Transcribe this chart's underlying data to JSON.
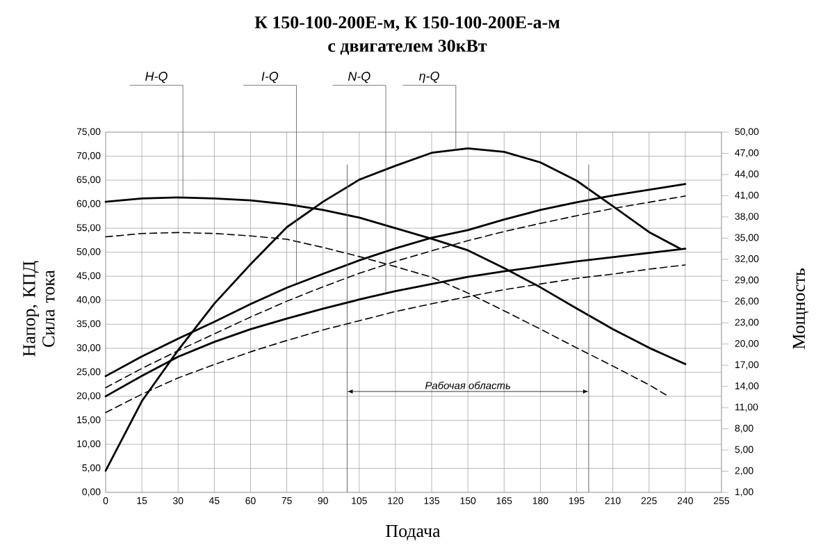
{
  "chart_data": {
    "type": "line",
    "title": "К 150-100-200Е-м, К 150-100-200Е-а-м",
    "subtitle": "с двигателем 30кВт",
    "xlabel": "Подача",
    "ylabel": "Напор, КПД Сила тока",
    "y2label": "Мощность",
    "x": [
      0,
      15,
      30,
      45,
      60,
      75,
      90,
      105,
      120,
      135,
      150,
      165,
      180,
      195,
      210,
      225,
      240
    ],
    "xlim": [
      0,
      255
    ],
    "xticks": [
      0,
      15,
      30,
      45,
      60,
      75,
      90,
      105,
      120,
      135,
      150,
      165,
      180,
      195,
      210,
      225,
      240,
      255
    ],
    "ylim": [
      0,
      75
    ],
    "yticks": [
      {
        "value": 0,
        "label": "0,00"
      },
      {
        "value": 5,
        "label": "5,00"
      },
      {
        "value": 10,
        "label": "10,00"
      },
      {
        "value": 15,
        "label": "15,00"
      },
      {
        "value": 20,
        "label": "20,00"
      },
      {
        "value": 25,
        "label": "25,00"
      },
      {
        "value": 30,
        "label": "30,00"
      },
      {
        "value": 35,
        "label": "35,00"
      },
      {
        "value": 40,
        "label": "40,00"
      },
      {
        "value": 45,
        "label": "45,00"
      },
      {
        "value": 50,
        "label": "50,00"
      },
      {
        "value": 55,
        "label": "55,00"
      },
      {
        "value": 60,
        "label": "60,00"
      },
      {
        "value": 65,
        "label": "65,00"
      },
      {
        "value": 70,
        "label": "70,00"
      },
      {
        "value": 75,
        "label": "75,00"
      }
    ],
    "y2lim": [
      -1,
      50
    ],
    "y2ticks": [
      {
        "value": -1,
        "label": "1,00"
      },
      {
        "value": 2,
        "label": "2,00"
      },
      {
        "value": 5,
        "label": "5,00"
      },
      {
        "value": 8,
        "label": "8,00"
      },
      {
        "value": 11,
        "label": "11,00"
      },
      {
        "value": 14,
        "label": "14,00"
      },
      {
        "value": 17,
        "label": "17,00"
      },
      {
        "value": 20,
        "label": "20,00"
      },
      {
        "value": 23,
        "label": "23,00"
      },
      {
        "value": 26,
        "label": "26,00"
      },
      {
        "value": 29,
        "label": "29,00"
      },
      {
        "value": 32,
        "label": "32,00"
      },
      {
        "value": 35,
        "label": "35,00"
      },
      {
        "value": 38,
        "label": "38,00"
      },
      {
        "value": 41,
        "label": "41,00"
      },
      {
        "value": 44,
        "label": "44,00"
      },
      {
        "value": 47,
        "label": "47,00"
      },
      {
        "value": 50,
        "label": "50,00"
      }
    ],
    "grid": true,
    "series": [
      {
        "color": "#000000",
        "line_style": "solid",
        "values": [
          60.5,
          61.2,
          61.4,
          61.2,
          60.8,
          60.0,
          58.8,
          57.2,
          55.0,
          52.8,
          50.4,
          46.7,
          42.7,
          38.3,
          34.0,
          30.1,
          26.7
        ]
      },
      {
        "color": "#000000",
        "line_style": "dashed",
        "x": [
          0,
          15,
          30,
          45,
          60,
          75,
          90,
          105,
          120,
          135,
          150,
          165,
          180,
          195,
          210,
          225,
          232
        ],
        "values": [
          53.2,
          53.9,
          54.1,
          53.9,
          53.4,
          52.7,
          51.0,
          49.1,
          47.0,
          44.8,
          41.5,
          37.8,
          34.0,
          30.1,
          26.3,
          22.4,
          20.3
        ]
      },
      {
        "color": "#000000",
        "line_style": "solid",
        "x": [
          0,
          15,
          30,
          45,
          60,
          75,
          90,
          105,
          120,
          135,
          150,
          165,
          180,
          195,
          210,
          225,
          238
        ],
        "values": [
          4.5,
          19.0,
          29.6,
          39.3,
          47.5,
          55.2,
          60.5,
          65.1,
          68.0,
          70.7,
          71.6,
          70.9,
          68.7,
          64.9,
          59.6,
          54.2,
          50.7
        ]
      },
      {
        "color": "#000000",
        "line_style": "solid",
        "values": [
          24.2,
          28.3,
          32.0,
          35.5,
          39.2,
          42.6,
          45.5,
          48.3,
          50.8,
          53.0,
          54.6,
          56.8,
          58.8,
          60.4,
          61.8,
          63.0,
          64.2
        ]
      },
      {
        "color": "#000000",
        "line_style": "dashed",
        "values": [
          21.8,
          25.8,
          29.5,
          33.0,
          36.5,
          39.8,
          42.8,
          45.6,
          48.1,
          50.3,
          52.4,
          54.3,
          56.0,
          57.6,
          59.1,
          60.4,
          61.7
        ]
      },
      {
        "color": "#000000",
        "line_style": "solid",
        "axis": "y2",
        "values": [
          12.6,
          15.5,
          18.2,
          20.3,
          22.1,
          23.6,
          25.0,
          26.3,
          27.5,
          28.5,
          29.5,
          30.3,
          31.0,
          31.7,
          32.3,
          32.9,
          33.5
        ]
      },
      {
        "color": "#000000",
        "line_style": "dashed",
        "axis": "y2",
        "values": [
          10.3,
          12.9,
          15.2,
          17.1,
          18.9,
          20.5,
          22.0,
          23.3,
          24.6,
          25.7,
          26.7,
          27.7,
          28.5,
          29.3,
          29.9,
          30.6,
          31.2
        ]
      }
    ],
    "ref_lines": [
      {
        "axis": "x",
        "value": 100
      },
      {
        "axis": "x",
        "value": 200
      }
    ],
    "annotations": [
      "Рабочая область",
      {
        "text": "H-Q",
        "x": 32,
        "y": 61.4
      },
      {
        "text": "I-Q",
        "x": 79,
        "y": 43.5
      },
      {
        "text": "N-Q",
        "x": 116,
        "y": 41.7
      },
      {
        "text": "η-Q",
        "x": 145,
        "y": 71.2
      }
    ]
  }
}
